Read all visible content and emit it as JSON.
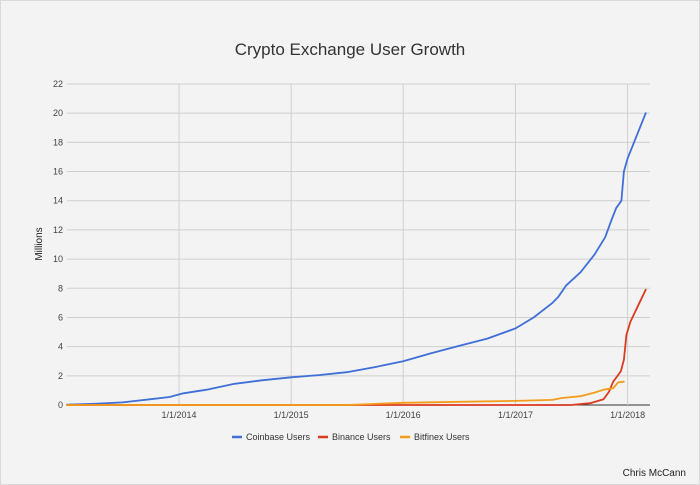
{
  "chart_data": {
    "type": "line",
    "title": "Crypto Exchange User Growth",
    "xlabel": "",
    "ylabel": "Millions",
    "ylim": [
      0,
      22
    ],
    "yticks": [
      0,
      2,
      4,
      6,
      8,
      10,
      12,
      14,
      16,
      18,
      20,
      22
    ],
    "xlim": [
      "2013-01-01",
      "2018-03-15"
    ],
    "xticks": [
      "1/1/2014",
      "1/1/2015",
      "1/1/2016",
      "1/1/2017",
      "1/1/2018"
    ],
    "grid": true,
    "legend_position": "bottom",
    "series": [
      {
        "name": "Coinbase Users",
        "color": "#3f6fd8",
        "points": [
          [
            "2013-01-01",
            0.02
          ],
          [
            "2013-04-01",
            0.08
          ],
          [
            "2013-07-01",
            0.18
          ],
          [
            "2013-10-01",
            0.4
          ],
          [
            "2013-12-01",
            0.55
          ],
          [
            "2014-01-15",
            0.8
          ],
          [
            "2014-04-01",
            1.05
          ],
          [
            "2014-07-01",
            1.45
          ],
          [
            "2014-10-01",
            1.7
          ],
          [
            "2015-01-01",
            1.9
          ],
          [
            "2015-04-01",
            2.05
          ],
          [
            "2015-07-01",
            2.25
          ],
          [
            "2015-10-01",
            2.6
          ],
          [
            "2016-01-01",
            3.0
          ],
          [
            "2016-04-01",
            3.55
          ],
          [
            "2016-07-01",
            4.05
          ],
          [
            "2016-10-01",
            4.55
          ],
          [
            "2017-01-01",
            5.25
          ],
          [
            "2017-03-01",
            6.0
          ],
          [
            "2017-05-01",
            7.0
          ],
          [
            "2017-05-20",
            7.4
          ],
          [
            "2017-06-15",
            8.2
          ],
          [
            "2017-08-01",
            9.1
          ],
          [
            "2017-09-15",
            10.3
          ],
          [
            "2017-10-20",
            11.5
          ],
          [
            "2017-11-10",
            12.7
          ],
          [
            "2017-11-25",
            13.5
          ],
          [
            "2017-12-12",
            14.0
          ],
          [
            "2017-12-20",
            16.0
          ],
          [
            "2018-01-01",
            16.9
          ],
          [
            "2018-03-01",
            20.0
          ]
        ]
      },
      {
        "name": "Binance Users",
        "color": "#db3a1f",
        "points": [
          [
            "2013-01-01",
            0
          ],
          [
            "2017-07-01",
            0
          ],
          [
            "2017-09-01",
            0.12
          ],
          [
            "2017-10-15",
            0.4
          ],
          [
            "2017-11-01",
            0.9
          ],
          [
            "2017-11-15",
            1.6
          ],
          [
            "2017-12-10",
            2.3
          ],
          [
            "2017-12-20",
            3.1
          ],
          [
            "2017-12-28",
            4.8
          ],
          [
            "2018-01-10",
            5.7
          ],
          [
            "2018-03-01",
            7.9
          ]
        ]
      },
      {
        "name": "Bitfinex Users",
        "color": "#f39c1a",
        "points": [
          [
            "2013-01-01",
            0
          ],
          [
            "2015-07-01",
            0.0
          ],
          [
            "2016-01-01",
            0.15
          ],
          [
            "2016-07-01",
            0.22
          ],
          [
            "2017-01-01",
            0.28
          ],
          [
            "2017-05-01",
            0.35
          ],
          [
            "2017-06-01",
            0.48
          ],
          [
            "2017-08-01",
            0.6
          ],
          [
            "2017-09-15",
            0.85
          ],
          [
            "2017-10-15",
            1.05
          ],
          [
            "2017-11-15",
            1.15
          ],
          [
            "2017-12-01",
            1.55
          ],
          [
            "2017-12-20",
            1.6
          ]
        ]
      }
    ]
  },
  "footer": {
    "credit": "Chris McCann"
  }
}
